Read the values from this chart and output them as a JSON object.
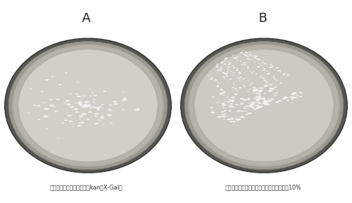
{
  "background_color_top": "#ffffff",
  "background_color_plate_area": "#111111",
  "background_color_bottom": "#c8c8c8",
  "fig_width": 4.98,
  "fig_height": 2.87,
  "label_A": "A",
  "label_B": "B",
  "caption_A": "质粒电转结果（培养基加入kan和X-Gal）",
  "caption_B": "二次重组交换蓝白斑筛选图培养基蓝糖浓度10%",
  "plate_A_color": "#d2cfc8",
  "plate_B_color": "#cccac3",
  "plate_outer_color": "#888880",
  "plate_rim_color": "#b8b5ae",
  "colony_color_A": "#f8f8f6",
  "colony_color_B": "#f9f9f7",
  "label_color": "#222222",
  "caption_color": "#333333",
  "caption_fontsize": 5.8,
  "label_fontsize": 13
}
